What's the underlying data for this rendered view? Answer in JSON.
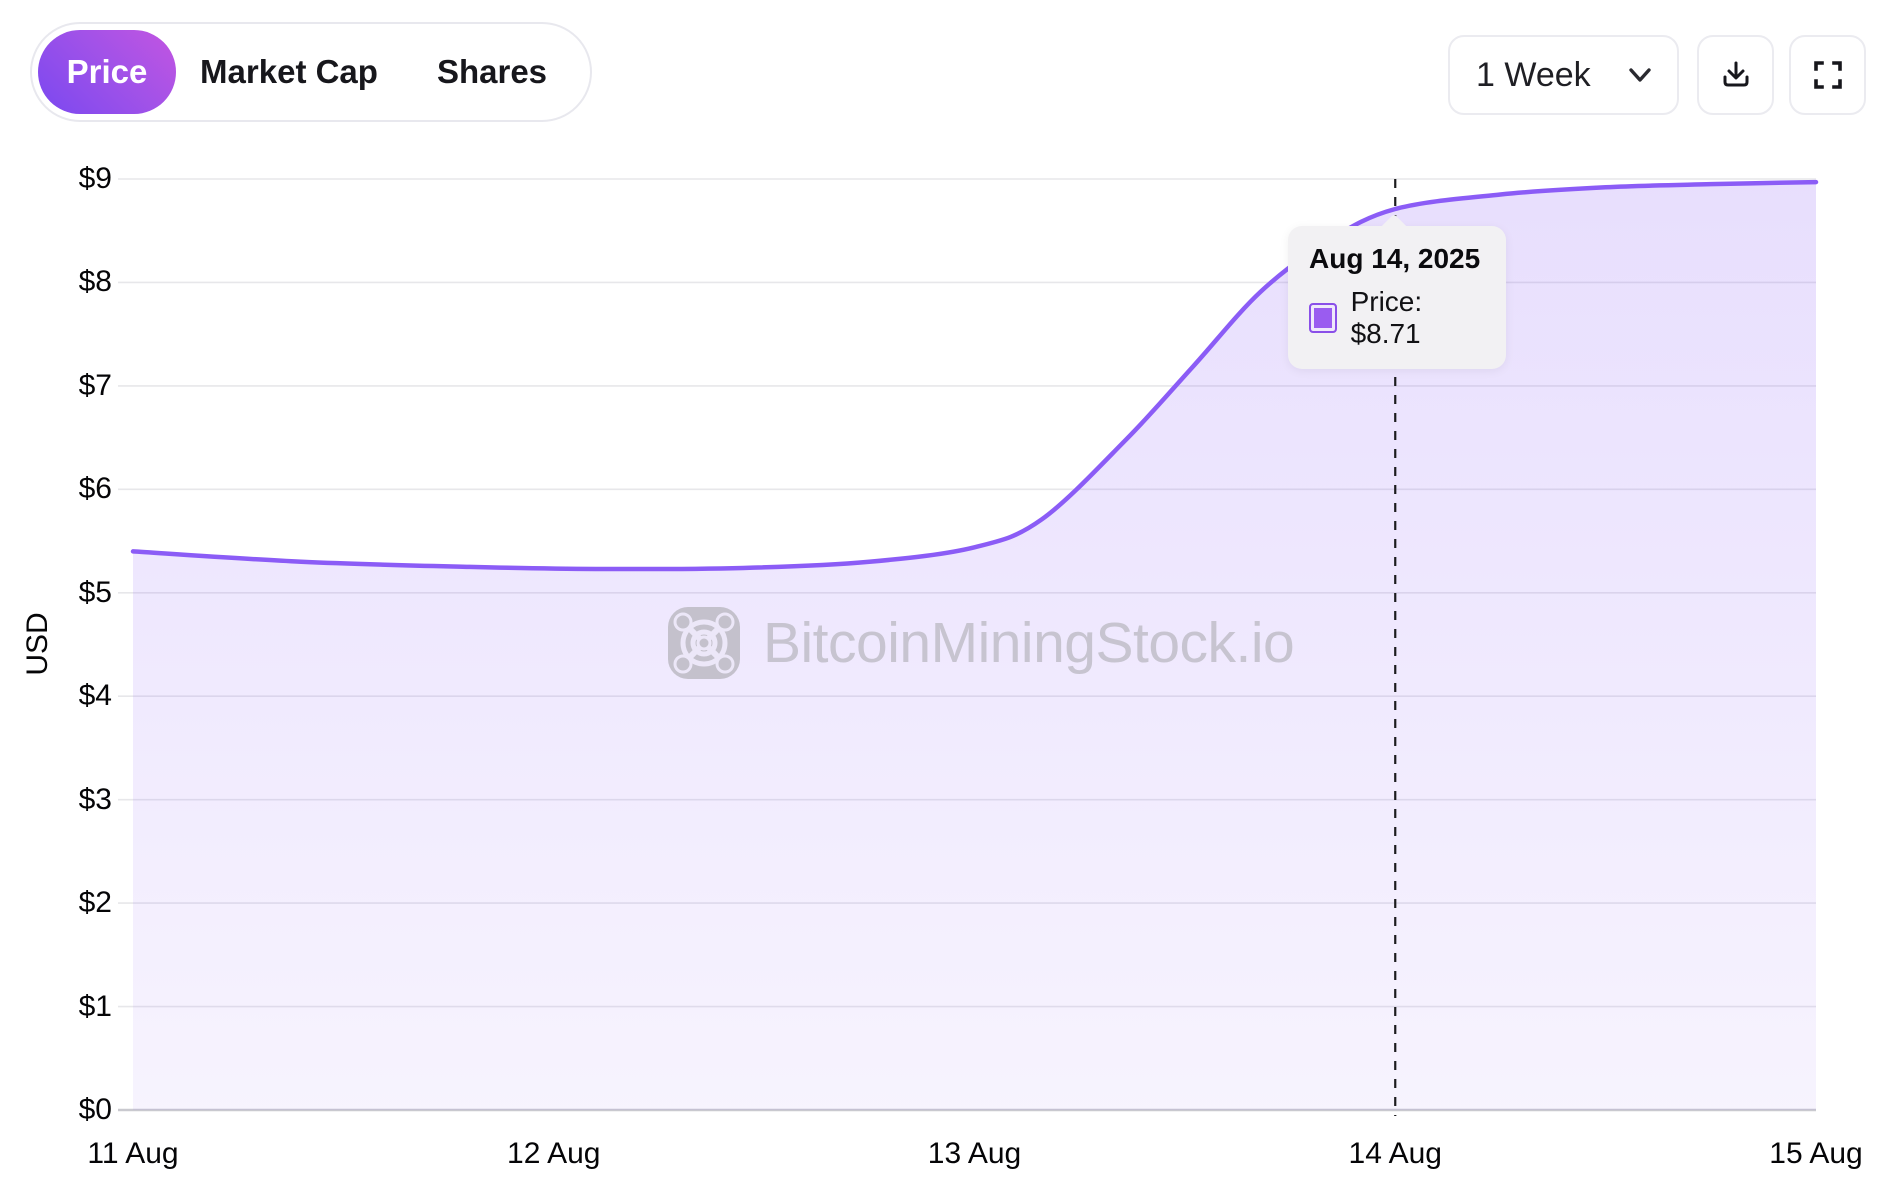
{
  "header": {
    "tabs": [
      {
        "label": "Price",
        "active": true
      },
      {
        "label": "Market Cap",
        "active": false
      },
      {
        "label": "Shares",
        "active": false
      }
    ],
    "range_selector": {
      "value": "1 Week"
    }
  },
  "chart_data": {
    "type": "area",
    "ylabel": "USD",
    "xlim": [
      11,
      15
    ],
    "ylim": [
      0,
      9
    ],
    "grid": true,
    "x_ticks": [
      {
        "value": 11,
        "label": "11 Aug"
      },
      {
        "value": 12,
        "label": "12 Aug"
      },
      {
        "value": 13,
        "label": "13 Aug"
      },
      {
        "value": 14,
        "label": "14 Aug"
      },
      {
        "value": 15,
        "label": "15 Aug"
      }
    ],
    "y_ticks": [
      {
        "value": 0,
        "label": "$0"
      },
      {
        "value": 1,
        "label": "$1"
      },
      {
        "value": 2,
        "label": "$2"
      },
      {
        "value": 3,
        "label": "$3"
      },
      {
        "value": 4,
        "label": "$4"
      },
      {
        "value": 5,
        "label": "$5"
      },
      {
        "value": 6,
        "label": "$6"
      },
      {
        "value": 7,
        "label": "$7"
      },
      {
        "value": 8,
        "label": "$8"
      },
      {
        "value": 9,
        "label": "$9"
      }
    ],
    "series": [
      {
        "name": "Price",
        "color": "#8b5cf6",
        "points": [
          [
            11.0,
            5.4
          ],
          [
            11.4,
            5.3
          ],
          [
            11.8,
            5.25
          ],
          [
            12.1,
            5.23
          ],
          [
            12.45,
            5.24
          ],
          [
            12.75,
            5.3
          ],
          [
            13.0,
            5.44
          ],
          [
            13.16,
            5.71
          ],
          [
            13.36,
            6.48
          ],
          [
            13.52,
            7.19
          ],
          [
            13.68,
            7.91
          ],
          [
            13.84,
            8.4
          ],
          [
            14.0,
            8.71
          ],
          [
            14.25,
            8.85
          ],
          [
            14.5,
            8.92
          ],
          [
            14.75,
            8.95
          ],
          [
            15.0,
            8.97
          ]
        ]
      }
    ],
    "cursor": {
      "x": 14,
      "y": 8.71
    }
  },
  "tooltip": {
    "title": "Aug 14, 2025",
    "label": "Price: $8.71"
  },
  "watermark": {
    "text": "BitcoinMiningStock.io"
  },
  "colors": {
    "accent": "#8b5cf6",
    "fill_top": "rgba(139,92,246,0.20)",
    "fill_bottom": "rgba(139,92,246,0.07)",
    "grid": "#e7e7ea",
    "axis_baseline": "#c9c9cf",
    "cursor_line": "#1c1c1e"
  }
}
